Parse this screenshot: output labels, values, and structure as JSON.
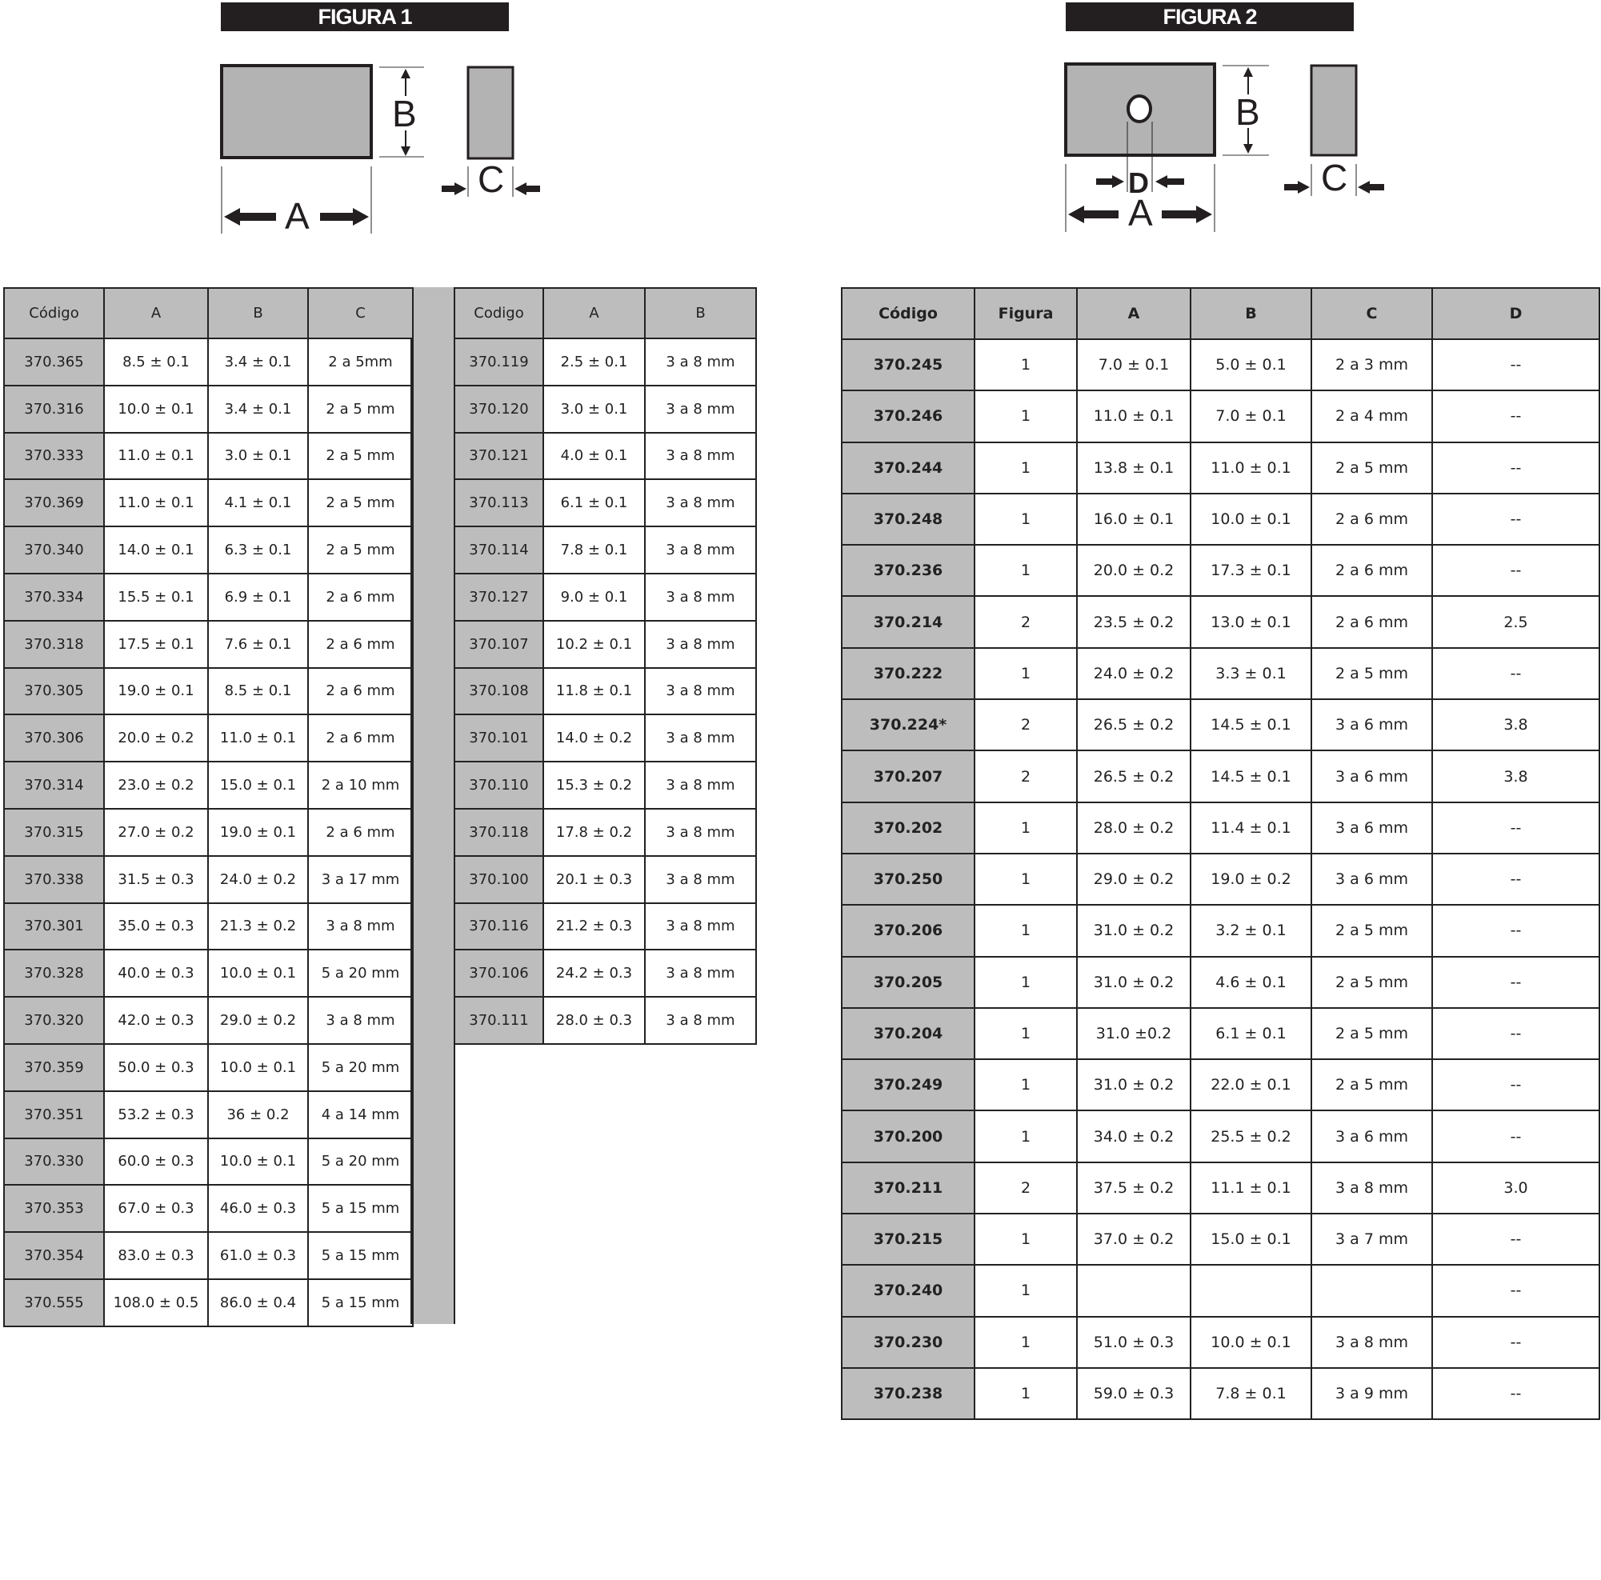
{
  "figure1": {
    "label": "FIGURA 1",
    "dim_a": "A",
    "dim_b": "B",
    "dim_c": "C"
  },
  "figure2": {
    "label": "FIGURA 2",
    "dim_a": "A",
    "dim_b": "B",
    "dim_c": "C",
    "dim_d": "D"
  },
  "table1": {
    "headers": [
      "Código",
      "A",
      "B",
      "C"
    ],
    "rows": [
      [
        "370.365",
        "8.5 ± 0.1",
        "3.4 ± 0.1",
        "2 a 5mm"
      ],
      [
        "370.316",
        "10.0 ± 0.1",
        "3.4 ± 0.1",
        "2 a 5 mm"
      ],
      [
        "370.333",
        "11.0 ± 0.1",
        "3.0 ± 0.1",
        "2 a 5 mm"
      ],
      [
        "370.369",
        "11.0 ± 0.1",
        "4.1 ± 0.1",
        "2 a 5 mm"
      ],
      [
        "370.340",
        "14.0 ± 0.1",
        "6.3 ± 0.1",
        "2 a 5 mm"
      ],
      [
        "370.334",
        "15.5 ± 0.1",
        "6.9 ± 0.1",
        "2 a 6 mm"
      ],
      [
        "370.318",
        "17.5 ± 0.1",
        "7.6 ± 0.1",
        "2 a 6 mm"
      ],
      [
        "370.305",
        "19.0 ± 0.1",
        "8.5 ± 0.1",
        "2 a 6 mm"
      ],
      [
        "370.306",
        "20.0 ± 0.2",
        "11.0 ± 0.1",
        "2 a 6 mm"
      ],
      [
        "370.314",
        "23.0 ± 0.2",
        "15.0 ± 0.1",
        "2 a 10 mm"
      ],
      [
        "370.315",
        "27.0 ± 0.2",
        "19.0 ± 0.1",
        "2 a 6 mm"
      ],
      [
        "370.338",
        "31.5 ± 0.3",
        "24.0 ± 0.2",
        "3 a 17 mm"
      ],
      [
        "370.301",
        "35.0 ± 0.3",
        "21.3 ± 0.2",
        "3 a 8 mm"
      ],
      [
        "370.328",
        "40.0 ± 0.3",
        "10.0 ± 0.1",
        "5 a 20 mm"
      ],
      [
        "370.320",
        "42.0 ± 0.3",
        "29.0 ± 0.2",
        "3 a 8 mm"
      ],
      [
        "370.359",
        "50.0 ± 0.3",
        "10.0 ± 0.1",
        "5 a 20 mm"
      ],
      [
        "370.351",
        "53.2 ± 0.3",
        "36 ± 0.2",
        "4 a 14 mm"
      ],
      [
        "370.330",
        "60.0 ± 0.3",
        "10.0 ± 0.1",
        "5 a 20 mm"
      ],
      [
        "370.353",
        "67.0 ± 0.3",
        "46.0 ± 0.3",
        "5 a 15 mm"
      ],
      [
        "370.354",
        "83.0 ± 0.3",
        "61.0 ± 0.3",
        "5 a 15 mm"
      ],
      [
        "370.555",
        "108.0 ± 0.5",
        "86.0 ± 0.4",
        "5 a 15 mm"
      ]
    ]
  },
  "table2": {
    "headers": [
      "Codigo",
      "A",
      "B"
    ],
    "rows": [
      [
        "370.119",
        "2.5 ± 0.1",
        "3 a 8 mm"
      ],
      [
        "370.120",
        "3.0 ± 0.1",
        "3 a 8 mm"
      ],
      [
        "370.121",
        "4.0 ± 0.1",
        "3 a 8 mm"
      ],
      [
        "370.113",
        "6.1 ± 0.1",
        "3 a 8 mm"
      ],
      [
        "370.114",
        "7.8 ± 0.1",
        "3 a 8 mm"
      ],
      [
        "370.127",
        "9.0 ± 0.1",
        "3 a 8 mm"
      ],
      [
        "370.107",
        "10.2 ± 0.1",
        "3 a 8 mm"
      ],
      [
        "370.108",
        "11.8 ± 0.1",
        "3 a 8 mm"
      ],
      [
        "370.101",
        "14.0 ± 0.2",
        "3 a 8 mm"
      ],
      [
        "370.110",
        "15.3 ± 0.2",
        "3 a 8 mm"
      ],
      [
        "370.118",
        "17.8 ± 0.2",
        "3 a 8 mm"
      ],
      [
        "370.100",
        "20.1 ± 0.3",
        "3 a 8 mm"
      ],
      [
        "370.116",
        "21.2 ± 0.3",
        "3 a 8 mm"
      ],
      [
        "370.106",
        "24.2 ± 0.3",
        "3 a 8 mm"
      ],
      [
        "370.111",
        "28.0 ± 0.3",
        "3 a 8 mm"
      ]
    ]
  },
  "table3": {
    "headers": [
      "Código",
      "Figura",
      "A",
      "B",
      "C",
      "D"
    ],
    "rows": [
      [
        "370.245",
        "1",
        "7.0 ± 0.1",
        "5.0 ± 0.1",
        "2 a 3 mm",
        "--"
      ],
      [
        "370.246",
        "1",
        "11.0 ± 0.1",
        "7.0 ± 0.1",
        "2 a 4 mm",
        "--"
      ],
      [
        "370.244",
        "1",
        "13.8 ± 0.1",
        "11.0 ± 0.1",
        "2 a 5 mm",
        "--"
      ],
      [
        "370.248",
        "1",
        "16.0 ± 0.1",
        "10.0 ± 0.1",
        "2 a 6 mm",
        "--"
      ],
      [
        "370.236",
        "1",
        "20.0 ± 0.2",
        "17.3 ± 0.1",
        "2 a 6 mm",
        "--"
      ],
      [
        "370.214",
        "2",
        "23.5 ± 0.2",
        "13.0 ± 0.1",
        "2 a 6 mm",
        "2.5"
      ],
      [
        "370.222",
        "1",
        "24.0 ± 0.2",
        "3.3 ± 0.1",
        "2 a 5 mm",
        "--"
      ],
      [
        "370.224*",
        "2",
        "26.5 ± 0.2",
        "14.5 ± 0.1",
        "3 a 6 mm",
        "3.8"
      ],
      [
        "370.207",
        "2",
        "26.5 ± 0.2",
        "14.5 ± 0.1",
        "3 a 6 mm",
        "3.8"
      ],
      [
        "370.202",
        "1",
        "28.0 ± 0.2",
        "11.4 ± 0.1",
        "3 a 6 mm",
        "--"
      ],
      [
        "370.250",
        "1",
        "29.0 ± 0.2",
        "19.0 ± 0.2",
        "3 a 6 mm",
        "--"
      ],
      [
        "370.206",
        "1",
        "31.0 ± 0.2",
        "3.2 ± 0.1",
        "2 a 5 mm",
        "--"
      ],
      [
        "370.205",
        "1",
        "31.0 ± 0.2",
        "4.6 ± 0.1",
        "2 a 5 mm",
        "--"
      ],
      [
        "370.204",
        "1",
        "31.0 ±0.2",
        "6.1 ± 0.1",
        "2 a 5 mm",
        "--"
      ],
      [
        "370.249",
        "1",
        "31.0 ± 0.2",
        "22.0 ± 0.1",
        "2 a 5 mm",
        "--"
      ],
      [
        "370.200",
        "1",
        "34.0 ± 0.2",
        "25.5 ± 0.2",
        "3 a 6 mm",
        "--"
      ],
      [
        "370.211",
        "2",
        "37.5 ± 0.2",
        "11.1 ± 0.1",
        "3 a 8 mm",
        "3.0"
      ],
      [
        "370.215",
        "1",
        "37.0 ± 0.2",
        "15.0 ± 0.1",
        "3 a 7 mm",
        "--"
      ],
      [
        "370.240",
        "1",
        "",
        "",
        "",
        "--"
      ],
      [
        "370.230",
        "1",
        "51.0 ± 0.3",
        "10.0 ± 0.1",
        "3 a 8 mm",
        "--"
      ],
      [
        "370.238",
        "1",
        "59.0 ± 0.3",
        "7.8 ± 0.1",
        "3 a 9 mm",
        "--"
      ]
    ]
  }
}
